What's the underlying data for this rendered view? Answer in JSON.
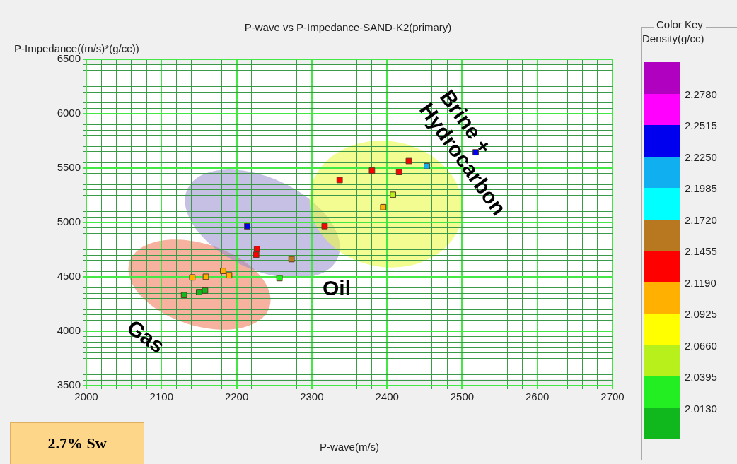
{
  "chart_data": {
    "type": "scatter",
    "title": "P-wave vs P-Impedance-SAND-K2(primary)",
    "xlabel": "P-wave(m/s)",
    "ylabel": "P-Impedance((m/s)*(g/cc))",
    "clabel": "Density(g/cc)",
    "x": [
      2214,
      2227,
      2226,
      2273,
      2257,
      2317,
      2141,
      2159,
      2182,
      2190,
      2130,
      2150,
      2158,
      2337,
      2380,
      2416,
      2429,
      2453,
      2408,
      2395,
      2518
    ],
    "values": [
      4965,
      4757,
      4703,
      4663,
      4488,
      4966,
      4495,
      4501,
      4555,
      4515,
      4333,
      4360,
      4374,
      5390,
      5477,
      5464,
      5565,
      5518,
      5255,
      5141,
      5645
    ],
    "cvalues": [
      2.238,
      2.13,
      2.13,
      2.16,
      2.02,
      2.13,
      2.1,
      2.1,
      2.1,
      2.1,
      2.0,
      2.0,
      2.0,
      2.13,
      2.13,
      2.13,
      2.13,
      2.21,
      2.05,
      2.1,
      2.238
    ],
    "xlim": [
      2000,
      2700
    ],
    "xticks": [
      2000,
      {
        "value": 2020,
        "label": null
      },
      {
        "value": 2040,
        "label": null
      },
      {
        "value": 2060,
        "label": null
      },
      {
        "value": 2080,
        "label": null
      },
      2100,
      {
        "value": 2120,
        "label": null
      },
      {
        "value": 2140,
        "label": null
      },
      {
        "value": 2160,
        "label": null
      },
      {
        "value": 2180,
        "label": null
      },
      2200,
      {
        "value": 2220,
        "label": null
      },
      {
        "value": 2240,
        "label": null
      },
      {
        "value": 2260,
        "label": null
      },
      {
        "value": 2280,
        "label": null
      },
      2300,
      {
        "value": 2320,
        "label": null
      },
      {
        "value": 2340,
        "label": null
      },
      {
        "value": 2360,
        "label": null
      },
      {
        "value": 2380,
        "label": null
      },
      2400,
      {
        "value": 2420,
        "label": null
      },
      {
        "value": 2440,
        "label": null
      },
      {
        "value": 2460,
        "label": null
      },
      {
        "value": 2480,
        "label": null
      },
      2500,
      {
        "value": 2520,
        "label": null
      },
      {
        "value": 2540,
        "label": null
      },
      {
        "value": 2560,
        "label": null
      },
      {
        "value": 2580,
        "label": null
      },
      2600,
      {
        "value": 2620,
        "label": null
      },
      {
        "value": 2640,
        "label": null
      },
      {
        "value": 2660,
        "label": null
      },
      {
        "value": 2680,
        "label": null
      },
      2700
    ],
    "ylim": [
      3500,
      6500
    ],
    "yticks": [
      3500,
      {
        "value": 3550,
        "label": null
      },
      {
        "value": 3600,
        "label": null
      },
      {
        "value": 3650,
        "label": null
      },
      {
        "value": 3700,
        "label": null
      },
      {
        "value": 3750,
        "label": null
      },
      {
        "value": 3800,
        "label": null
      },
      {
        "value": 3850,
        "label": null
      },
      {
        "value": 3900,
        "label": null
      },
      {
        "value": 3950,
        "label": null
      },
      4000,
      {
        "value": 4050,
        "label": null
      },
      {
        "value": 4100,
        "label": null
      },
      {
        "value": 4150,
        "label": null
      },
      {
        "value": 4200,
        "label": null
      },
      {
        "value": 4250,
        "label": null
      },
      {
        "value": 4300,
        "label": null
      },
      {
        "value": 4350,
        "label": null
      },
      {
        "value": 4400,
        "label": null
      },
      {
        "value": 4450,
        "label": null
      },
      4500,
      {
        "value": 4550,
        "label": null
      },
      {
        "value": 4600,
        "label": null
      },
      {
        "value": 4650,
        "label": null
      },
      {
        "value": 4700,
        "label": null
      },
      {
        "value": 4750,
        "label": null
      },
      {
        "value": 4800,
        "label": null
      },
      {
        "value": 4850,
        "label": null
      },
      {
        "value": 4900,
        "label": null
      },
      {
        "value": 4950,
        "label": null
      },
      5000,
      {
        "value": 5050,
        "label": null
      },
      {
        "value": 5100,
        "label": null
      },
      {
        "value": 5150,
        "label": null
      },
      {
        "value": 5200,
        "label": null
      },
      {
        "value": 5250,
        "label": null
      },
      {
        "value": 5300,
        "label": null
      },
      {
        "value": 5350,
        "label": null
      },
      {
        "value": 5400,
        "label": null
      },
      {
        "value": 5450,
        "label": null
      },
      5500,
      {
        "value": 5550,
        "label": null
      },
      {
        "value": 5600,
        "label": null
      },
      {
        "value": 5650,
        "label": null
      },
      {
        "value": 5700,
        "label": null
      },
      {
        "value": 5750,
        "label": null
      },
      {
        "value": 5800,
        "label": null
      },
      {
        "value": 5850,
        "label": null
      },
      {
        "value": 5900,
        "label": null
      },
      {
        "value": 5950,
        "label": null
      },
      6000,
      {
        "value": 6050,
        "label": null
      },
      {
        "value": 6100,
        "label": null
      },
      {
        "value": 6150,
        "label": null
      },
      {
        "value": 6200,
        "label": null
      },
      {
        "value": 6250,
        "label": null
      },
      {
        "value": 6300,
        "label": null
      },
      {
        "value": 6350,
        "label": null
      },
      {
        "value": 6400,
        "label": null
      },
      {
        "value": 6450,
        "label": null
      },
      6500
    ],
    "clim": [
      1.9865,
      2.3045
    ],
    "cticks": [
      {
        "value": 2.013,
        "label": "2.0130"
      },
      {
        "value": 2.0395,
        "label": "2.0395"
      },
      {
        "value": 2.066,
        "label": "2.0660"
      },
      {
        "value": 2.0925,
        "label": "2.0925"
      },
      {
        "value": 2.119,
        "label": "2.1190"
      },
      {
        "value": 2.1455,
        "label": "2.1455"
      },
      {
        "value": 2.172,
        "label": "2.1720"
      },
      {
        "value": 2.1985,
        "label": "2.1985"
      },
      {
        "value": 2.225,
        "label": "2.2250"
      },
      {
        "value": 2.2515,
        "label": "2.2515"
      },
      {
        "value": 2.278,
        "label": "2.2780"
      }
    ],
    "grid": true,
    "marker": "square",
    "legend": false,
    "annotations": [
      "Gas",
      "Oil",
      "Brine + Hydrocarbon",
      "2.7% Sw",
      "Color Key"
    ]
  }
}
